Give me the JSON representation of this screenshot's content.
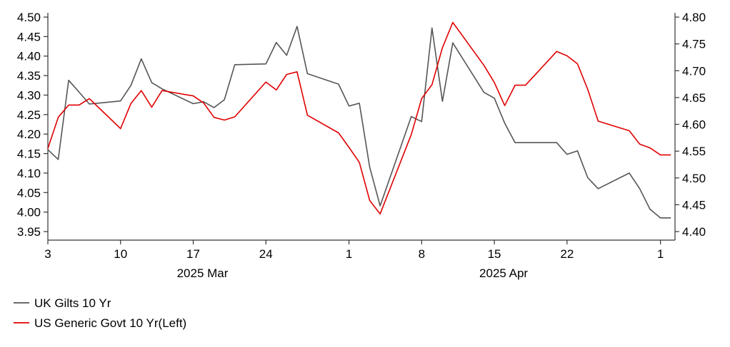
{
  "chart_data": {
    "type": "line",
    "x": [
      "2025-03-03",
      "2025-03-04",
      "2025-03-05",
      "2025-03-06",
      "2025-03-07",
      "2025-03-10",
      "2025-03-11",
      "2025-03-12",
      "2025-03-13",
      "2025-03-14",
      "2025-03-17",
      "2025-03-18",
      "2025-03-19",
      "2025-03-20",
      "2025-03-21",
      "2025-03-24",
      "2025-03-25",
      "2025-03-26",
      "2025-03-27",
      "2025-03-28",
      "2025-03-31",
      "2025-04-01",
      "2025-04-02",
      "2025-04-03",
      "2025-04-04",
      "2025-04-07",
      "2025-04-08",
      "2025-04-09",
      "2025-04-10",
      "2025-04-11",
      "2025-04-14",
      "2025-04-15",
      "2025-04-16",
      "2025-04-17",
      "2025-04-18",
      "2025-04-21",
      "2025-04-22",
      "2025-04-23",
      "2025-04-24",
      "2025-04-25",
      "2025-04-28",
      "2025-04-29",
      "2025-04-30",
      "2025-05-01",
      "2025-05-02"
    ],
    "series": [
      {
        "name": "UK Gilts 10 Yr",
        "axis": "left",
        "color": "#555555",
        "values": [
          4.16,
          4.135,
          4.338,
          4.308,
          4.277,
          4.285,
          4.325,
          4.393,
          4.332,
          4.316,
          4.278,
          4.283,
          4.268,
          4.288,
          4.378,
          4.38,
          4.435,
          4.402,
          4.476,
          4.355,
          4.328,
          4.272,
          4.279,
          4.115,
          4.016,
          4.245,
          4.232,
          4.472,
          4.284,
          4.434,
          4.307,
          4.292,
          4.228,
          4.178,
          4.178,
          4.178,
          4.148,
          4.157,
          4.088,
          4.06,
          4.1,
          4.06,
          4.007,
          3.985,
          3.985
        ]
      },
      {
        "name": "US Generic Govt 10 Yr(Left)",
        "axis": "right",
        "color": "#e00000",
        "values": [
          4.555,
          4.613,
          4.636,
          4.636,
          4.648,
          4.592,
          4.639,
          4.663,
          4.632,
          4.663,
          4.653,
          4.64,
          4.613,
          4.608,
          4.614,
          4.679,
          4.664,
          4.693,
          4.698,
          4.617,
          4.584,
          4.557,
          4.529,
          4.458,
          4.433,
          4.581,
          4.648,
          4.674,
          4.743,
          4.79,
          4.71,
          4.678,
          4.635,
          4.673,
          4.673,
          4.736,
          4.728,
          4.713,
          4.665,
          4.606,
          4.588,
          4.563,
          4.556,
          4.543,
          4.543
        ]
      }
    ],
    "left_axis": {
      "min": 3.95,
      "max": 4.5,
      "ticks": [
        "3.95",
        "4.00",
        "4.05",
        "4.10",
        "4.15",
        "4.20",
        "4.25",
        "4.30",
        "4.35",
        "4.40",
        "4.45",
        "4.50"
      ]
    },
    "right_axis": {
      "min": 4.4,
      "max": 4.8,
      "ticks": [
        "4.40",
        "4.45",
        "4.50",
        "4.55",
        "4.60",
        "4.65",
        "4.70",
        "4.75",
        "4.80"
      ]
    },
    "x_ticks": [
      {
        "date": "2025-03-03",
        "label": "3"
      },
      {
        "date": "2025-03-10",
        "label": "10"
      },
      {
        "date": "2025-03-17",
        "label": "17"
      },
      {
        "date": "2025-03-24",
        "label": "24"
      },
      {
        "date": "2025-04-01",
        "label": "1"
      },
      {
        "date": "2025-04-08",
        "label": "8"
      },
      {
        "date": "2025-04-15",
        "label": "15"
      },
      {
        "date": "2025-04-22",
        "label": "22"
      },
      {
        "date": "2025-05-01",
        "label": "1"
      }
    ],
    "x_group_labels": [
      {
        "label": "2025 Mar",
        "center_date": "2025-03-17"
      },
      {
        "label": "2025 Apr",
        "center_date": "2025-04-15"
      }
    ],
    "legend": [
      {
        "label": "UK Gilts 10 Yr",
        "color": "#555555"
      },
      {
        "label": "US Generic Govt 10 Yr(Left)",
        "color": "#e00000"
      }
    ],
    "legend_position": "bottom-left",
    "grid": false
  }
}
